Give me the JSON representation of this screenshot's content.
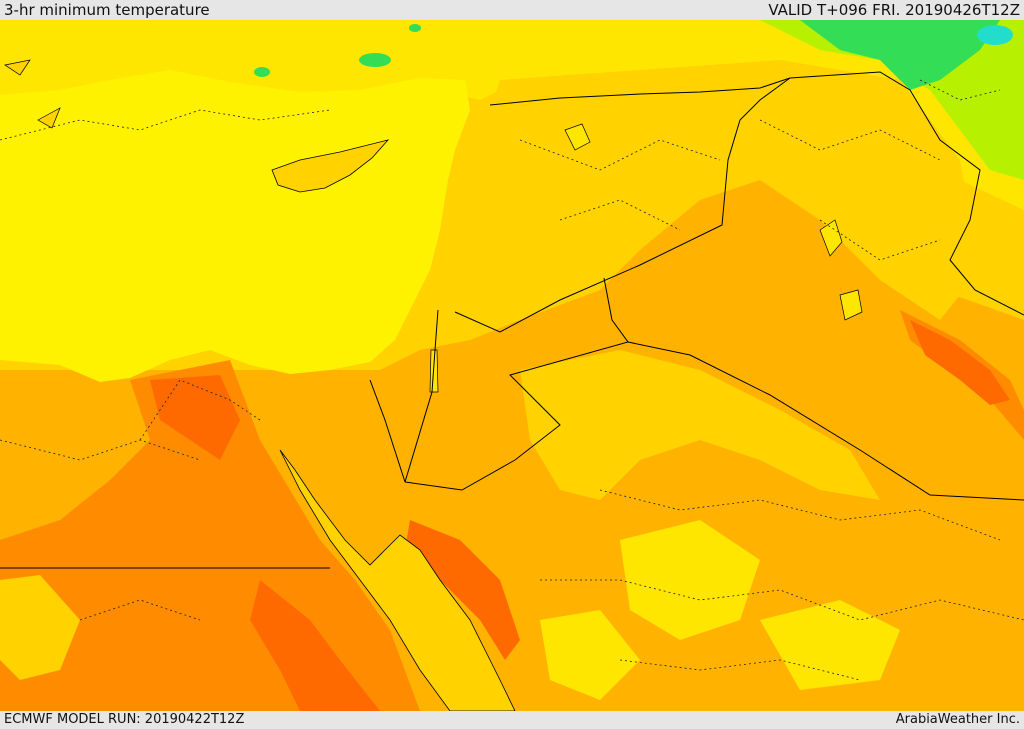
{
  "header": {
    "title": "3-hr minimum temperature",
    "valid": "VALID T+096 FRI. 20190426T12Z"
  },
  "footer": {
    "model_run": "ECMWF MODEL RUN: 20190422T12Z",
    "credit": "ArabiaWeather Inc."
  },
  "palette": {
    "sea": "#fff200",
    "pale_yellow": "#ffff33",
    "yellow": "#ffe600",
    "light_orange": "#ffd200",
    "orange": "#ffb300",
    "dark_orange": "#ff8c00",
    "red_orange": "#ff6a00",
    "light_green": "#b7f000",
    "green": "#33dd55",
    "cyan": "#22ddcc",
    "border": "#000000"
  }
}
